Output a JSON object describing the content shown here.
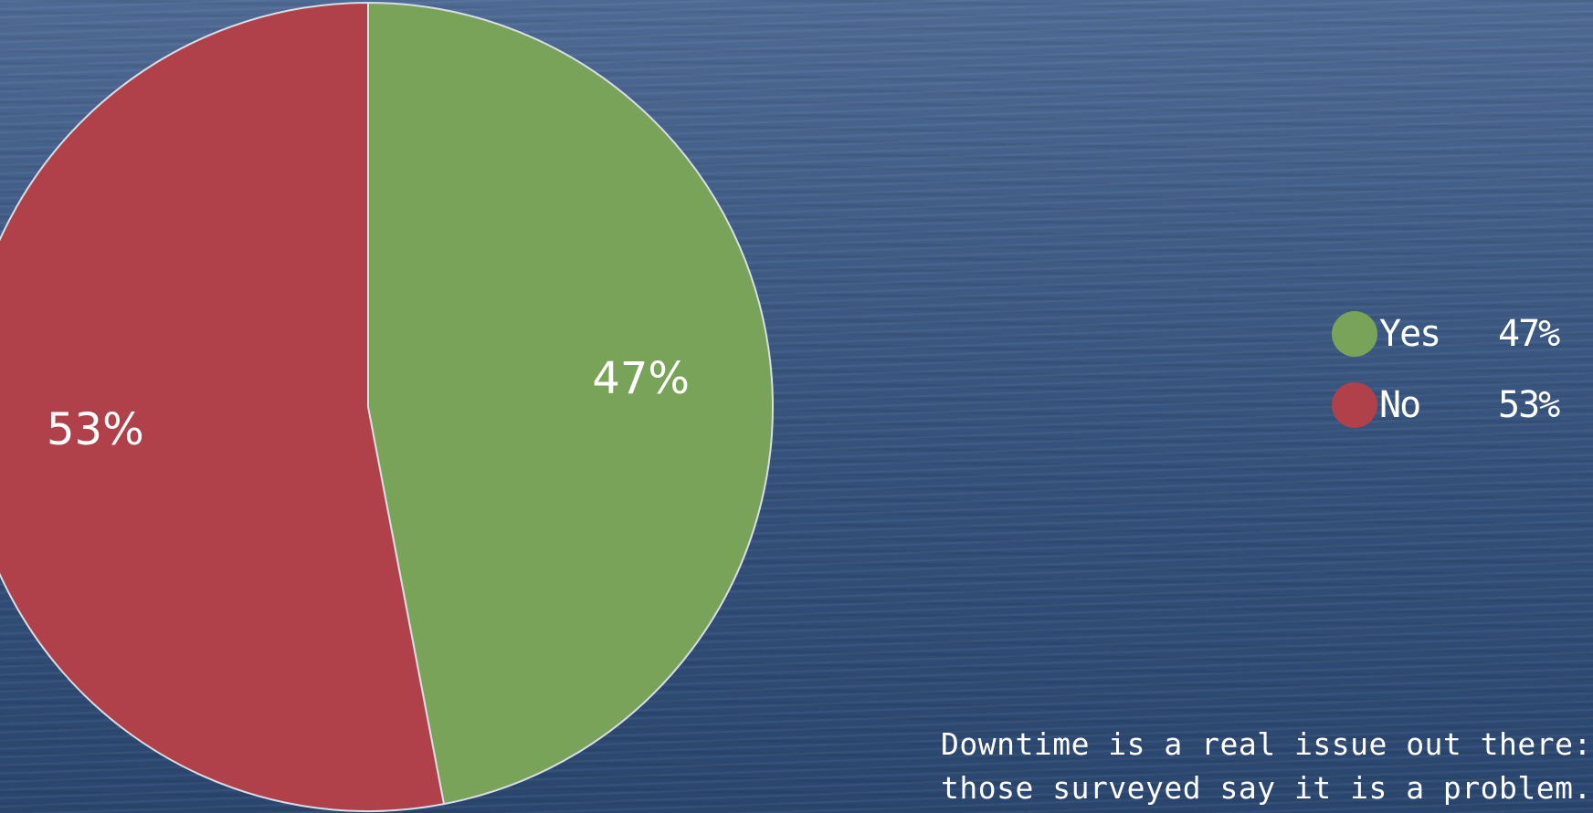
{
  "chart_data": {
    "type": "pie",
    "title": "",
    "slices": [
      {
        "name": "Yes",
        "value": 47,
        "label": "47%",
        "color": "#7aa35a"
      },
      {
        "name": "No",
        "value": 53,
        "label": "53%",
        "color": "#b0414a"
      }
    ],
    "legend": {
      "placement": "right",
      "entries": [
        {
          "name": "Yes",
          "value_text": "47%",
          "color": "#7aa35a"
        },
        {
          "name": "No",
          "value_text": "53%",
          "color": "#b0414a"
        }
      ]
    },
    "start_angle": "top",
    "direction": "clockwise"
  },
  "caption": {
    "line1": "Downtime is a real issue out there: m",
    "line2": "those surveyed say it is a problem."
  },
  "colors": {
    "slice_border": "#d8dde6",
    "label_text": "#ffffff",
    "background": "#3f5c86"
  }
}
